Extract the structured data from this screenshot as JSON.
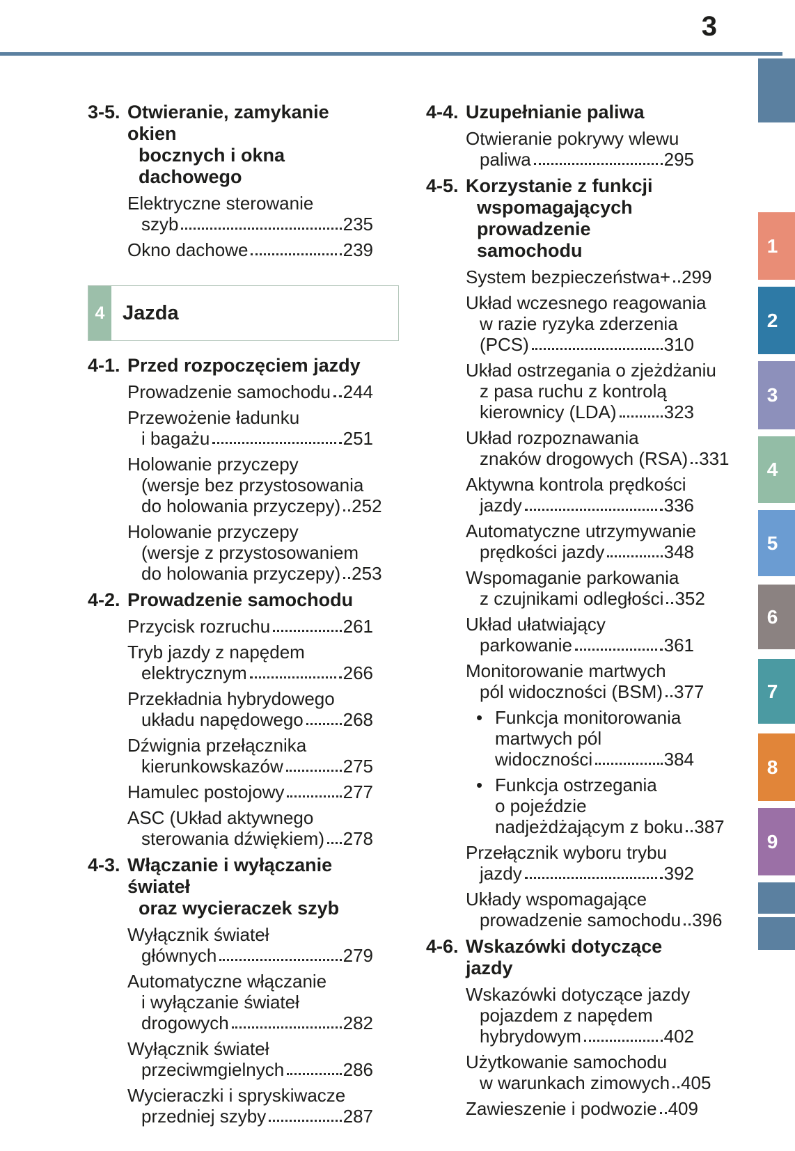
{
  "page": {
    "number": "3"
  },
  "colors": {
    "rule": "#5b80a0",
    "text": "#1d1d1b",
    "banner_green": "#9cbfaa",
    "banner_border": "#b3c6ba"
  },
  "tabs": [
    {
      "label": "",
      "color": "#5b80a0"
    },
    {
      "label": "1",
      "color": "#e98d76"
    },
    {
      "label": "2",
      "color": "#2e7aa6"
    },
    {
      "label": "3",
      "color": "#8d90bb"
    },
    {
      "label": "4",
      "color": "#93bda6"
    },
    {
      "label": "5",
      "color": "#6b9cd2"
    },
    {
      "label": "6",
      "color": "#8b8281"
    },
    {
      "label": "7",
      "color": "#4b9aa2"
    },
    {
      "label": "8",
      "color": "#e18539"
    },
    {
      "label": "9",
      "color": "#9b70a6"
    },
    {
      "label": "",
      "color": "#5b80a0"
    },
    {
      "label": "",
      "color": "#5b80a0"
    }
  ],
  "left_column": {
    "blocks": [
      {
        "num": "3-5.",
        "title": [
          "Otwieranie, zamykanie okien",
          "bocznych i okna dachowego"
        ],
        "items": [
          {
            "lines": [
              {
                "t": "Elektryczne sterowanie"
              },
              {
                "t": "szyb",
                "p": "235",
                "c": 1
              }
            ]
          },
          {
            "lines": [
              {
                "t": "Okno dachowe",
                "p": "239"
              }
            ]
          }
        ]
      },
      {
        "banner": true,
        "number": "4",
        "label": "Jazda"
      },
      {
        "num": "4-1.",
        "title": [
          "Przed rozpoczęciem jazdy"
        ],
        "items": [
          {
            "lines": [
              {
                "t": "Prowadzenie samochodu",
                "p": "244"
              }
            ]
          },
          {
            "lines": [
              {
                "t": "Przewożenie ładunku"
              },
              {
                "t": "i bagażu",
                "p": "251",
                "c": 1
              }
            ]
          },
          {
            "lines": [
              {
                "t": "Holowanie przyczepy"
              },
              {
                "t": "(wersje bez przystosowania",
                "c": 1
              },
              {
                "t": "do holowania przyczepy)",
                "p": "252",
                "c": 1
              }
            ]
          },
          {
            "lines": [
              {
                "t": "Holowanie przyczepy"
              },
              {
                "t": "(wersje z przystosowaniem",
                "c": 1
              },
              {
                "t": "do holowania przyczepy)",
                "p": "253",
                "c": 1
              }
            ]
          }
        ]
      },
      {
        "num": "4-2.",
        "title": [
          "Prowadzenie samochodu"
        ],
        "items": [
          {
            "lines": [
              {
                "t": "Przycisk rozruchu",
                "p": "261"
              }
            ]
          },
          {
            "lines": [
              {
                "t": "Tryb jazdy z napędem"
              },
              {
                "t": "elektrycznym",
                "p": "266",
                "c": 1
              }
            ]
          },
          {
            "lines": [
              {
                "t": "Przekładnia hybrydowego"
              },
              {
                "t": "układu napędowego",
                "p": "268",
                "c": 1
              }
            ]
          },
          {
            "lines": [
              {
                "t": "Dźwignia przełącznika"
              },
              {
                "t": "kierunkowskazów",
                "p": "275",
                "c": 1
              }
            ]
          },
          {
            "lines": [
              {
                "t": "Hamulec postojowy",
                "p": "277"
              }
            ]
          },
          {
            "lines": [
              {
                "t": "ASC (Układ aktywnego"
              },
              {
                "t": "sterowania dźwiękiem)",
                "p": "278",
                "c": 1
              }
            ]
          }
        ]
      },
      {
        "num": "4-3.",
        "title": [
          "Włączanie i wyłączanie świateł",
          "oraz wycieraczek szyb"
        ],
        "items": [
          {
            "lines": [
              {
                "t": "Wyłącznik świateł"
              },
              {
                "t": "głównych",
                "p": "279",
                "c": 1
              }
            ]
          },
          {
            "lines": [
              {
                "t": "Automatyczne włączanie"
              },
              {
                "t": "i wyłączanie świateł",
                "c": 1
              },
              {
                "t": "drogowych",
                "p": "282",
                "c": 1
              }
            ]
          },
          {
            "lines": [
              {
                "t": "Wyłącznik świateł"
              },
              {
                "t": "przeciwmgielnych",
                "p": "286",
                "c": 1
              }
            ]
          },
          {
            "lines": [
              {
                "t": "Wycieraczki i spryskiwacze"
              },
              {
                "t": "przedniej szyby",
                "p": "287",
                "c": 1
              }
            ]
          }
        ]
      }
    ]
  },
  "right_column": {
    "blocks": [
      {
        "num": "4-4.",
        "title": [
          "Uzupełnianie paliwa"
        ],
        "items": [
          {
            "lines": [
              {
                "t": "Otwieranie pokrywy wlewu"
              },
              {
                "t": "paliwa",
                "p": "295",
                "c": 1
              }
            ]
          }
        ]
      },
      {
        "num": "4-5.",
        "title": [
          "Korzystanie z funkcji",
          "wspomagających prowadzenie",
          "samochodu"
        ],
        "items": [
          {
            "lines": [
              {
                "t": "System bezpieczeństwa+",
                "p": "299"
              }
            ]
          },
          {
            "lines": [
              {
                "t": "Układ wczesnego reagowania"
              },
              {
                "t": "w razie ryzyka zderzenia",
                "c": 1
              },
              {
                "t": "(PCS)",
                "p": "310",
                "c": 1
              }
            ]
          },
          {
            "lines": [
              {
                "t": "Układ ostrzegania o zjeżdżaniu"
              },
              {
                "t": "z pasa ruchu z kontrolą",
                "c": 1
              },
              {
                "t": "kierownicy (LDA)",
                "p": "323",
                "c": 1
              }
            ]
          },
          {
            "lines": [
              {
                "t": "Układ rozpoznawania"
              },
              {
                "t": "znaków drogowych (RSA)",
                "p": "331",
                "c": 1
              }
            ]
          },
          {
            "lines": [
              {
                "t": "Aktywna kontrola prędkości"
              },
              {
                "t": "jazdy",
                "p": "336",
                "c": 1
              }
            ]
          },
          {
            "lines": [
              {
                "t": "Automatyczne utrzymywanie"
              },
              {
                "t": "prędkości jazdy",
                "p": "348",
                "c": 1
              }
            ]
          },
          {
            "lines": [
              {
                "t": "Wspomaganie parkowania"
              },
              {
                "t": "z czujnikami odległości",
                "p": "352",
                "c": 1
              }
            ]
          },
          {
            "lines": [
              {
                "t": "Układ ułatwiający"
              },
              {
                "t": "parkowanie",
                "p": "361",
                "c": 1
              }
            ]
          },
          {
            "lines": [
              {
                "t": "Monitorowanie martwych"
              },
              {
                "t": "pól widoczności (BSM)",
                "p": "377",
                "c": 1
              }
            ]
          },
          {
            "bullet": true,
            "lines": [
              {
                "t": "Funkcja monitorowania"
              },
              {
                "t": "martwych pól",
                "c": 1
              },
              {
                "t": "widoczności",
                "p": "384",
                "c": 1
              }
            ]
          },
          {
            "bullet": true,
            "lines": [
              {
                "t": "Funkcja ostrzegania"
              },
              {
                "t": "o pojeździe",
                "c": 1
              },
              {
                "t": "nadjeżdżającym z boku",
                "p": "387",
                "c": 1
              }
            ]
          },
          {
            "lines": [
              {
                "t": "Przełącznik wyboru trybu"
              },
              {
                "t": "jazdy",
                "p": "392",
                "c": 1
              }
            ]
          },
          {
            "lines": [
              {
                "t": "Układy wspomagające"
              },
              {
                "t": "prowadzenie samochodu",
                "p": "396",
                "c": 1
              }
            ]
          }
        ]
      },
      {
        "num": "4-6.",
        "title": [
          "Wskazówki dotyczące jazdy"
        ],
        "items": [
          {
            "lines": [
              {
                "t": "Wskazówki dotyczące jazdy"
              },
              {
                "t": "pojazdem z napędem",
                "c": 1
              },
              {
                "t": "hybrydowym",
                "p": "402",
                "c": 1
              }
            ]
          },
          {
            "lines": [
              {
                "t": "Użytkowanie samochodu"
              },
              {
                "t": "w warunkach zimowych",
                "p": "405",
                "c": 1
              }
            ]
          },
          {
            "lines": [
              {
                "t": "Zawieszenie i podwozie",
                "p": "409"
              }
            ]
          }
        ]
      }
    ]
  }
}
